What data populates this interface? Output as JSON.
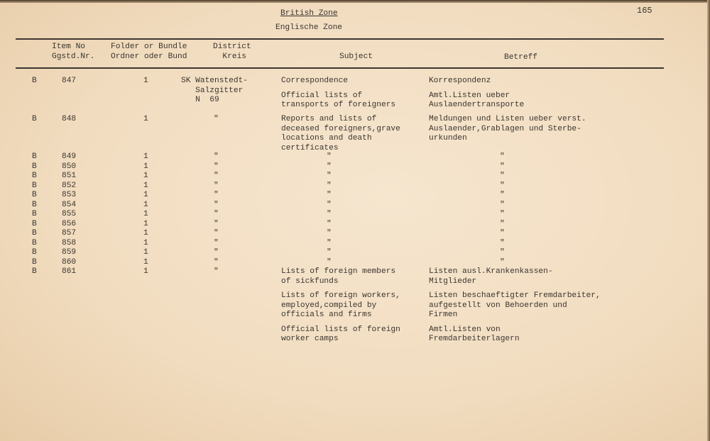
{
  "page_number": "165",
  "zone_en": "British Zone",
  "zone_de": "Englische Zone",
  "headers": {
    "item": "Item No\nGgstd.Nr.",
    "folder": "Folder or Bundle\nOrdner oder Bund",
    "district": "District\n  Kreis",
    "subject": "Subject",
    "betreff": "Betreff"
  },
  "rows": [
    {
      "prefix": "B",
      "item": "847",
      "folder": "1",
      "district": "SK Watenstedt-\n   Salzgitter\n   N  69",
      "subject": [
        "Correspondence",
        "Official lists of\ntransports of foreigners"
      ],
      "betreff": [
        "Korrespondenz",
        "Amtl.Listen ueber\nAuslaendertransporte"
      ]
    },
    {
      "prefix": "B",
      "item": "848",
      "folder": "1",
      "district": "\"",
      "subject": [
        "Reports and lists of\ndeceased foreigners,grave\nlocations and death\ncertificates"
      ],
      "betreff": [
        "Meldungen und Listen ueber verst.\nAuslaender,Grablagen und Sterbe-\nurkunden"
      ]
    },
    {
      "prefix": "B",
      "item": "849",
      "folder": "1",
      "district": "\"",
      "subject": [
        "\""
      ],
      "betreff": [
        "\""
      ]
    },
    {
      "prefix": "B",
      "item": "850",
      "folder": "1",
      "district": "\"",
      "subject": [
        "\""
      ],
      "betreff": [
        "\""
      ]
    },
    {
      "prefix": "B",
      "item": "851",
      "folder": "1",
      "district": "\"",
      "subject": [
        "\""
      ],
      "betreff": [
        "\""
      ]
    },
    {
      "prefix": "B",
      "item": "852",
      "folder": "1",
      "district": "\"",
      "subject": [
        "\""
      ],
      "betreff": [
        "\""
      ]
    },
    {
      "prefix": "B",
      "item": "853",
      "folder": "1",
      "district": "\"",
      "subject": [
        "\""
      ],
      "betreff": [
        "\""
      ]
    },
    {
      "prefix": "B",
      "item": "854",
      "folder": "1",
      "district": "\"",
      "subject": [
        "\""
      ],
      "betreff": [
        "\""
      ]
    },
    {
      "prefix": "B",
      "item": "855",
      "folder": "1",
      "district": "\"",
      "subject": [
        "\""
      ],
      "betreff": [
        "\""
      ]
    },
    {
      "prefix": "B",
      "item": "856",
      "folder": "1",
      "district": "\"",
      "subject": [
        "\""
      ],
      "betreff": [
        "\""
      ]
    },
    {
      "prefix": "B",
      "item": "857",
      "folder": "1",
      "district": "\"",
      "subject": [
        "\""
      ],
      "betreff": [
        "\""
      ]
    },
    {
      "prefix": "B",
      "item": "858",
      "folder": "1",
      "district": "\"",
      "subject": [
        "\""
      ],
      "betreff": [
        "\""
      ]
    },
    {
      "prefix": "B",
      "item": "859",
      "folder": "1",
      "district": "\"",
      "subject": [
        "\""
      ],
      "betreff": [
        "\""
      ]
    },
    {
      "prefix": "B",
      "item": "860",
      "folder": "1",
      "district": "\"",
      "subject": [
        "\""
      ],
      "betreff": [
        "\""
      ]
    },
    {
      "prefix": "B",
      "item": "861",
      "folder": "1",
      "district": "\"",
      "subject": [
        "Lists of foreign members\nof sickfunds",
        "Lists of foreign workers,\nemployed,compiled by\nofficials and firms",
        "Official lists of foreign\nworker camps"
      ],
      "betreff": [
        "Listen ausl.Krankenkassen-\nMitglieder",
        "Listen beschaeftigter Fremdarbeiter,\naufgestellt von Behoerden und\nFirmen",
        "Amtl.Listen von\nFremdarbeiterlagern"
      ]
    }
  ]
}
